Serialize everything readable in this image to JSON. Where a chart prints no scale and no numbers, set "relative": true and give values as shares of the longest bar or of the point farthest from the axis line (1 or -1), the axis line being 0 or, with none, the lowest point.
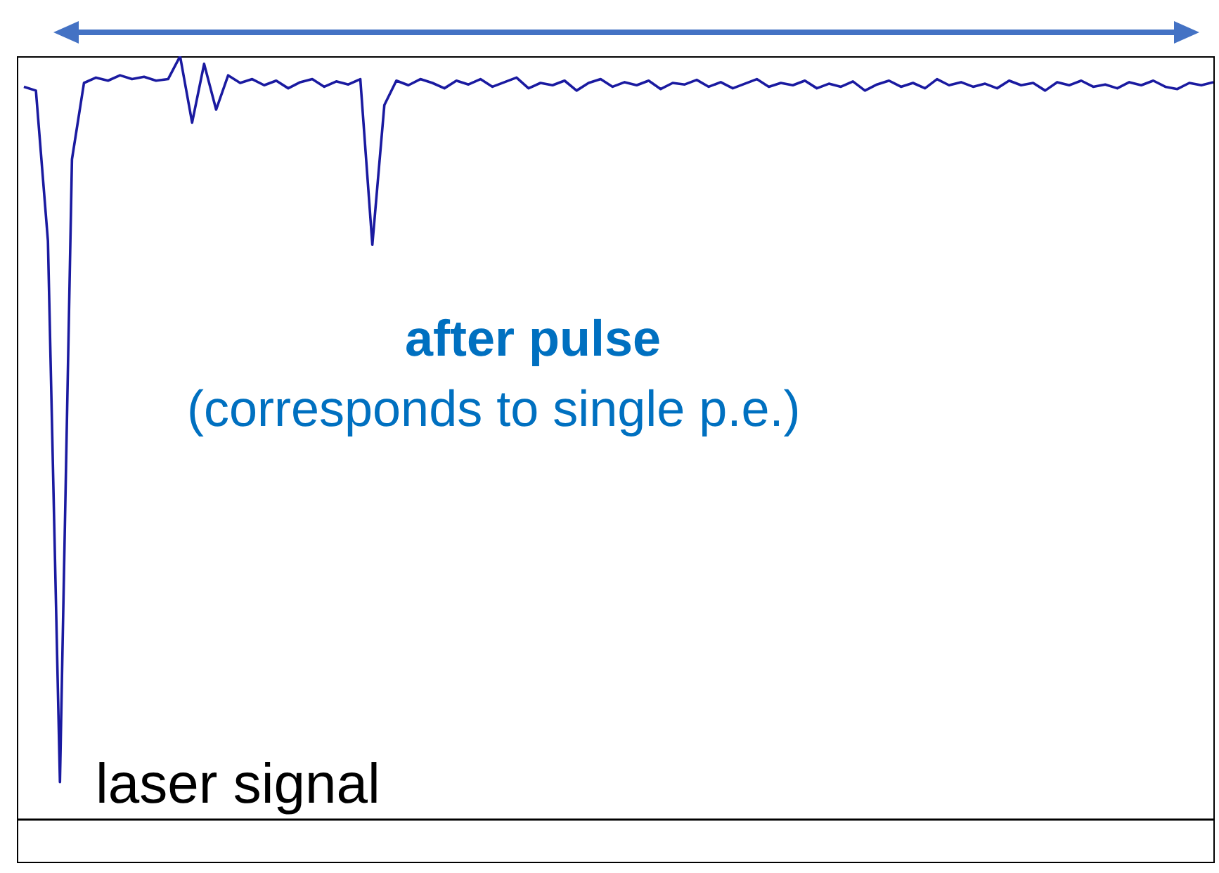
{
  "chart_data": {
    "type": "line",
    "relative": true,
    "categories": [
      null,
      null,
      null,
      null,
      null,
      null,
      null,
      null,
      null,
      null,
      null,
      null,
      null,
      null,
      null,
      null,
      null,
      null,
      null,
      null,
      null,
      null,
      null,
      null,
      null,
      null,
      null,
      null,
      null,
      null,
      null,
      null,
      null,
      null,
      null,
      null,
      null,
      null,
      null,
      null,
      null,
      null,
      null,
      null,
      null,
      null,
      null,
      null,
      null,
      null,
      null,
      null,
      null,
      null,
      null,
      null,
      null,
      null,
      null,
      null,
      null,
      null,
      null,
      null,
      null,
      null,
      null,
      null,
      null,
      null,
      null,
      null,
      null,
      null,
      null,
      null,
      null,
      null,
      null,
      null,
      null,
      null,
      null,
      null,
      null,
      null,
      null,
      null,
      null,
      null,
      null,
      null,
      null,
      null,
      null,
      null,
      null,
      null,
      null,
      null
    ],
    "series": [
      {
        "color": "#1a1aa0",
        "values": [
          0.96,
          0.955,
          0.758,
          0.049,
          0.865,
          0.965,
          0.972,
          0.968,
          0.975,
          0.97,
          0.973,
          0.968,
          0.97,
          1.0,
          0.913,
          0.99,
          0.93,
          0.975,
          0.965,
          0.97,
          0.962,
          0.968,
          0.958,
          0.966,
          0.97,
          0.96,
          0.967,
          0.963,
          0.97,
          0.753,
          0.936,
          0.968,
          0.962,
          0.97,
          0.965,
          0.958,
          0.968,
          0.963,
          0.97,
          0.96,
          0.966,
          0.972,
          0.958,
          0.965,
          0.962,
          0.968,
          0.955,
          0.965,
          0.97,
          0.96,
          0.966,
          0.962,
          0.968,
          0.957,
          0.965,
          0.963,
          0.969,
          0.96,
          0.966,
          0.958,
          0.964,
          0.97,
          0.96,
          0.965,
          0.962,
          0.968,
          0.958,
          0.964,
          0.96,
          0.967,
          0.955,
          0.963,
          0.968,
          0.96,
          0.965,
          0.958,
          0.97,
          0.962,
          0.966,
          0.96,
          0.964,
          0.958,
          0.968,
          0.962,
          0.965,
          0.955,
          0.966,
          0.962,
          0.968,
          0.96,
          0.963,
          0.958,
          0.966,
          0.962,
          0.968,
          0.96,
          0.957,
          0.965,
          0.962,
          0.966
        ]
      }
    ],
    "annotations": [
      "after pulse",
      "(corresponds to single p.e.)",
      "laser signal"
    ]
  }
}
